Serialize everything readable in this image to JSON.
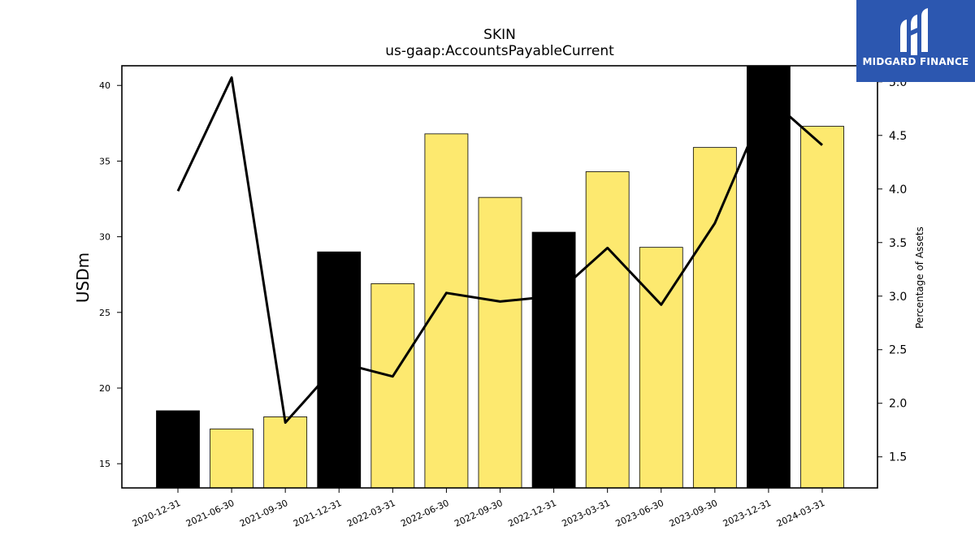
{
  "chart_data": {
    "type": "bar",
    "title": "SKIN",
    "subtitle": "us-gaap:AccountsPayableCurrent",
    "ylabel": "USDm",
    "y2label": "Percentage of Assets",
    "categories": [
      "2020-12-31",
      "2021-06-30",
      "2021-09-30",
      "2021-12-31",
      "2022-03-31",
      "2022-06-30",
      "2022-09-30",
      "2022-12-31",
      "2023-03-31",
      "2023-06-30",
      "2023-09-30",
      "2023-12-31",
      "2024-03-31"
    ],
    "bars": {
      "name": "Accounts Payable",
      "values": [
        18.5,
        17.3,
        18.1,
        29.0,
        26.9,
        36.8,
        32.6,
        30.3,
        34.3,
        29.3,
        35.9,
        41.3,
        37.3
      ],
      "colors": [
        "#000000",
        "#fde96f",
        "#fde96f",
        "#000000",
        "#fde96f",
        "#fde96f",
        "#fde96f",
        "#000000",
        "#fde96f",
        "#fde96f",
        "#fde96f",
        "#000000",
        "#fde96f"
      ]
    },
    "line": {
      "name": "Percentage of Assets",
      "values": [
        3.98,
        5.04,
        1.82,
        2.38,
        2.25,
        3.03,
        2.95,
        3.0,
        3.45,
        2.92,
        3.68,
        4.85,
        4.41
      ],
      "color": "#000000"
    },
    "ylim": [
      13.4,
      41.3
    ],
    "y2lim": [
      1.21,
      5.15
    ],
    "yticks": [
      "15",
      "20",
      "25",
      "30",
      "35",
      "40"
    ],
    "y2ticks": [
      "1.5",
      "2.0",
      "2.5",
      "3.0",
      "3.5",
      "4.0",
      "4.5",
      "5.0"
    ],
    "grid": false
  },
  "logo": {
    "text": "MIDGARD FINANCE",
    "background": "#2c57b0"
  }
}
